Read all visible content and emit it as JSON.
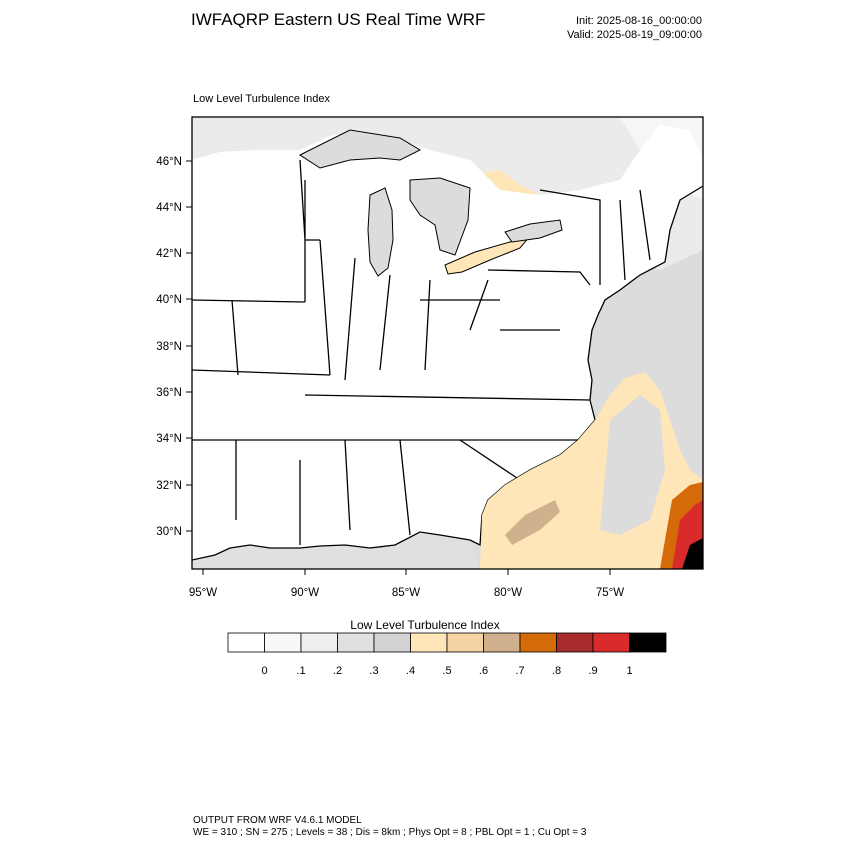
{
  "header": {
    "title": "IWFAQRP Eastern US Real Time WRF",
    "init": "Init: 2025-08-16_00:00:00",
    "valid": "Valid: 2025-08-19_09:00:00"
  },
  "map": {
    "subtitle": "Low Level Turbulence Index",
    "lat_labels": [
      "46°N",
      "44°N",
      "42°N",
      "40°N",
      "38°N",
      "36°N",
      "34°N",
      "32°N",
      "30°N"
    ],
    "lon_labels": [
      "95°W",
      "90°W",
      "85°W",
      "80°W",
      "75°W"
    ]
  },
  "colorbar": {
    "title": "Low Level Turbulence Index",
    "colors": [
      "#ffffff",
      "#f8f8f8",
      "#efefef",
      "#e0e0e0",
      "#d3d3d3",
      "#fee6b8",
      "#f5d3a4",
      "#d1b08d",
      "#d46b08",
      "#a82c2c",
      "#d92b2b",
      "#000000"
    ],
    "tick_labels": [
      "0",
      ".1",
      ".2",
      ".3",
      ".4",
      ".5",
      ".6",
      ".7",
      ".8",
      ".9",
      "1"
    ]
  },
  "footer": {
    "line1": "OUTPUT FROM WRF V4.6.1 MODEL",
    "line2": "WE = 310 ; SN = 275 ; Levels = 38 ; Dis = 8km ; Phys Opt = 8 ; PBL Opt = 1 ; Cu Opt = 3"
  }
}
